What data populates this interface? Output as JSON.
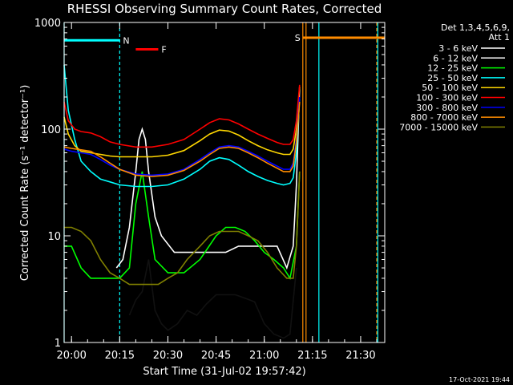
{
  "chart_data": {
    "type": "line",
    "title": "RHESSI Observing Summary Count Rates, Corrected",
    "xlabel": "Start Time (31-Jul-02 19:57:42)",
    "ylabel": "Corrected Count Rate (s⁻¹ detector⁻¹)",
    "yscale": "log",
    "ylim": [
      1,
      1000
    ],
    "xlim": [
      "19:57:42",
      "21:37:30"
    ],
    "xticks": [
      "20:00",
      "20:15",
      "20:30",
      "20:45",
      "21:00",
      "21:15",
      "21:30"
    ],
    "yticks": [
      "1",
      "10",
      "100",
      "1000"
    ],
    "legend_placement": "right, outside plot",
    "legend_header": [
      "Det 1,3,4,5,6,9,",
      "Att 1"
    ],
    "timestamp": "17-Oct-2021 19:44",
    "markers": [
      {
        "label": "N",
        "color": "#00ffff",
        "from": "19:57:42",
        "to": "20:15:00",
        "level": 680
      },
      {
        "label": "F",
        "color": "#ff0000",
        "from": "20:20:00",
        "to": "20:27:00",
        "level": 560
      },
      {
        "label": "S",
        "color": "#ff8c00",
        "from": "21:12:00",
        "to": "21:37:30",
        "level": 720
      }
    ],
    "vlines": [
      {
        "time": "19:57:42",
        "color": "#00ffff",
        "style": "solid"
      },
      {
        "time": "20:15:00",
        "color": "#00ffff",
        "style": "dashed"
      },
      {
        "time": "21:12:00",
        "color": "#ff8c00",
        "style": "solid"
      },
      {
        "time": "21:13:00",
        "color": "#ff8c00",
        "style": "solid"
      },
      {
        "time": "21:17:00",
        "color": "#00ffff",
        "style": "solid"
      },
      {
        "time": "21:35:00",
        "color": "#ff8c00",
        "style": "dashed"
      },
      {
        "time": "21:35:20",
        "color": "#00ffff",
        "style": "solid"
      }
    ],
    "series": [
      {
        "name": "3 - 6 keV",
        "color": "#000000",
        "x": [
          "20:18",
          "20:20",
          "20:22",
          "20:24",
          "20:26",
          "20:28",
          "20:30",
          "20:33",
          "20:36",
          "20:39",
          "20:42",
          "20:45",
          "20:48",
          "20:51",
          "20:54",
          "20:57",
          "21:00",
          "21:03",
          "21:06",
          "21:08",
          "21:10"
        ],
        "y": [
          1.8,
          2.5,
          3,
          6,
          2,
          1.5,
          1.3,
          1.5,
          2,
          1.8,
          2.3,
          2.8,
          2.8,
          2.8,
          2.6,
          2.4,
          1.5,
          1.2,
          1.1,
          1.2,
          5
        ]
      },
      {
        "name": "6 - 12 keV",
        "color": "#ffffff",
        "x": [
          "20:14",
          "20:16",
          "20:18",
          "20:20",
          "20:21",
          "20:22",
          "20:23",
          "20:24",
          "20:26",
          "20:28",
          "20:32",
          "20:36",
          "20:40",
          "20:44",
          "20:48",
          "20:52",
          "20:56",
          "21:00",
          "21:04",
          "21:07",
          "21:09",
          "21:10",
          "21:11"
        ],
        "y": [
          5,
          6,
          12,
          40,
          80,
          100,
          80,
          40,
          15,
          10,
          7,
          7,
          7,
          7,
          7,
          8,
          8,
          8,
          8,
          5,
          8,
          30,
          250
        ]
      },
      {
        "name": "12 - 25 keV",
        "color": "#00ff00",
        "x": [
          "19:57:42",
          "20:00",
          "20:03",
          "20:06",
          "20:09",
          "20:12",
          "20:15",
          "20:18",
          "20:20",
          "20:22",
          "20:24",
          "20:26",
          "20:30",
          "20:35",
          "20:40",
          "20:45",
          "20:48",
          "20:51",
          "20:54",
          "20:57",
          "21:00",
          "21:03",
          "21:06",
          "21:08",
          "21:10",
          "21:11"
        ],
        "y": [
          8,
          8,
          5,
          4,
          4,
          4,
          4,
          5,
          20,
          40,
          15,
          6,
          4.5,
          4.5,
          6,
          10,
          12,
          12,
          11,
          9,
          7,
          6,
          5,
          4,
          8,
          40
        ]
      },
      {
        "name": "25 - 50 keV",
        "color": "#00ffff",
        "x": [
          "19:57:42",
          "19:59",
          "20:01",
          "20:03",
          "20:06",
          "20:09",
          "20:12",
          "20:15",
          "20:20",
          "20:25",
          "20:30",
          "20:35",
          "20:40",
          "20:43",
          "20:46",
          "20:49",
          "20:52",
          "20:55",
          "20:58",
          "21:01",
          "21:04",
          "21:06",
          "21:08",
          "21:09",
          "21:10",
          "21:11"
        ],
        "y": [
          400,
          150,
          80,
          50,
          40,
          34,
          32,
          30,
          29,
          29,
          30,
          34,
          42,
          50,
          54,
          52,
          46,
          40,
          36,
          33,
          31,
          30,
          31,
          35,
          60,
          200
        ]
      },
      {
        "name": "50 - 100 keV",
        "color": "#ffd700",
        "x": [
          "19:57:42",
          "19:59",
          "20:01",
          "20:03",
          "20:06",
          "20:09",
          "20:12",
          "20:15",
          "20:20",
          "20:25",
          "20:30",
          "20:35",
          "20:40",
          "20:43",
          "20:46",
          "20:49",
          "20:52",
          "20:55",
          "20:58",
          "21:01",
          "21:04",
          "21:06",
          "21:08",
          "21:09",
          "21:10",
          "21:11"
        ],
        "y": [
          130,
          90,
          70,
          62,
          60,
          58,
          56,
          55,
          55,
          55,
          57,
          63,
          78,
          90,
          98,
          96,
          88,
          78,
          70,
          64,
          60,
          58,
          58,
          65,
          100,
          250
        ]
      },
      {
        "name": "100 - 300 keV",
        "color": "#ff0000",
        "x": [
          "19:57:42",
          "19:59",
          "20:01",
          "20:03",
          "20:06",
          "20:09",
          "20:12",
          "20:15",
          "20:20",
          "20:25",
          "20:30",
          "20:35",
          "20:40",
          "20:43",
          "20:46",
          "20:49",
          "20:52",
          "20:55",
          "20:58",
          "21:01",
          "21:04",
          "21:06",
          "21:08",
          "21:09",
          "21:10",
          "21:11"
        ],
        "y": [
          180,
          120,
          100,
          95,
          92,
          85,
          76,
          72,
          68,
          68,
          72,
          80,
          100,
          115,
          125,
          122,
          112,
          100,
          90,
          82,
          75,
          72,
          72,
          80,
          120,
          260
        ]
      },
      {
        "name": "300 - 800 keV",
        "color": "#0000ff",
        "x": [
          "19:57:42",
          "20:00",
          "20:03",
          "20:06",
          "20:09",
          "20:12",
          "20:15",
          "20:20",
          "20:25",
          "20:30",
          "20:35",
          "20:40",
          "20:43",
          "20:46",
          "20:49",
          "20:52",
          "20:55",
          "20:58",
          "21:01",
          "21:04",
          "21:06",
          "21:08",
          "21:09",
          "21:10",
          "21:11"
        ],
        "y": [
          65,
          62,
          60,
          58,
          52,
          46,
          42,
          38,
          37,
          38,
          42,
          52,
          60,
          68,
          70,
          68,
          62,
          56,
          50,
          45,
          42,
          42,
          48,
          80,
          200
        ]
      },
      {
        "name": "800 - 7000 keV",
        "color": "#ff8c00",
        "x": [
          "19:57:42",
          "20:00",
          "20:03",
          "20:06",
          "20:09",
          "20:12",
          "20:15",
          "20:20",
          "20:25",
          "20:30",
          "20:35",
          "20:40",
          "20:43",
          "20:46",
          "20:49",
          "20:52",
          "20:55",
          "20:58",
          "21:01",
          "21:04",
          "21:06",
          "21:08",
          "21:09",
          "21:10",
          "21:11"
        ],
        "y": [
          68,
          66,
          64,
          62,
          55,
          48,
          42,
          37,
          36,
          37,
          41,
          50,
          58,
          66,
          68,
          66,
          60,
          54,
          48,
          43,
          40,
          40,
          45,
          75,
          180
        ]
      },
      {
        "name": "7000 - 15000 keV",
        "color": "#808000",
        "x": [
          "19:57:42",
          "20:00",
          "20:03",
          "20:06",
          "20:09",
          "20:12",
          "20:15",
          "20:18",
          "20:21",
          "20:24",
          "20:27",
          "20:30",
          "20:33",
          "20:36",
          "20:40",
          "20:43",
          "20:46",
          "20:49",
          "20:52",
          "20:55",
          "20:58",
          "21:01",
          "21:04",
          "21:07",
          "21:09",
          "21:10",
          "21:11"
        ],
        "y": [
          12,
          12,
          11,
          9,
          6,
          4.5,
          4,
          3.5,
          3.5,
          3.5,
          3.5,
          4,
          4.5,
          6,
          8,
          10,
          11,
          11,
          11,
          10,
          9,
          7,
          5,
          4,
          4,
          8,
          40
        ]
      }
    ]
  }
}
